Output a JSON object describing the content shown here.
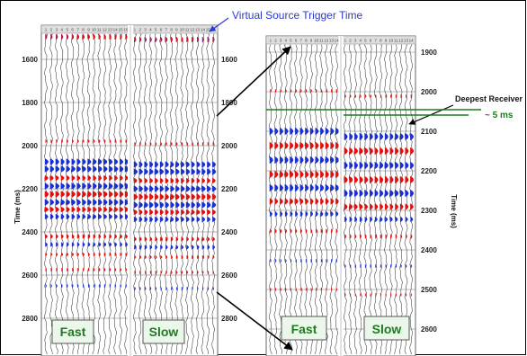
{
  "annotations": {
    "virtual_source": "Virtual Source Trigger Time",
    "deepest_receiver": "Deepest Receiver",
    "delta": "~ 5 ms"
  },
  "left_panel": {
    "y_axis_label": "Time (ms)",
    "ticks_left": [
      "1600",
      "1800",
      "2000",
      "2200",
      "2400",
      "2600",
      "2800"
    ],
    "ticks_right": [
      "1600",
      "1800",
      "2000",
      "2200",
      "2400",
      "2600",
      "2800"
    ],
    "labels": [
      "Fast",
      "Slow"
    ]
  },
  "right_panel": {
    "y_axis_label": "Time (ms)",
    "ticks": [
      "1900",
      "2000",
      "2100",
      "2200",
      "2300",
      "2400",
      "2500",
      "2600"
    ],
    "labels": [
      "Fast",
      "Slow"
    ]
  },
  "colors": {
    "positive": "#e01010",
    "negative": "#1a2fd0",
    "label_green": "#1e7a1e",
    "annotation_blue": "#2a3ad0"
  }
}
